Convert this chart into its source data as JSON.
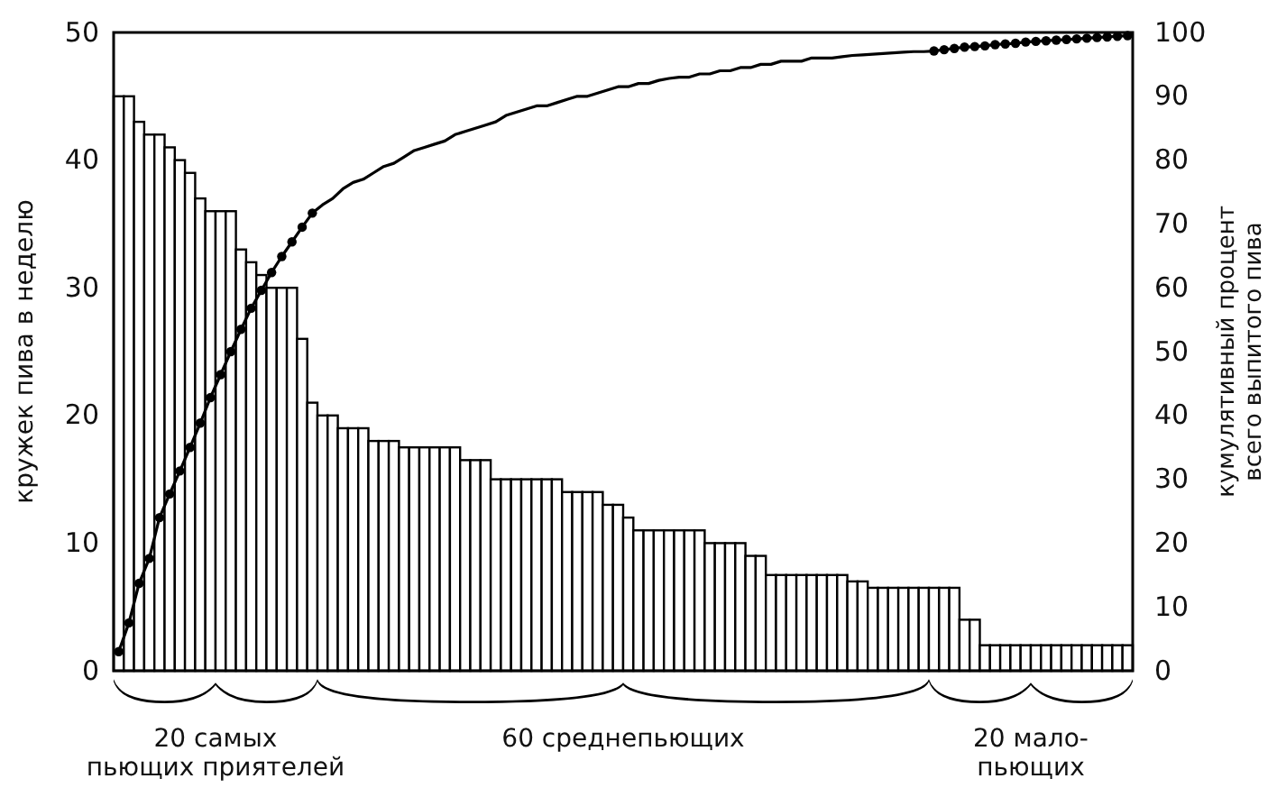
{
  "chart_data": {
    "type": "bar",
    "ylabel": "кружек пива в неделю",
    "y2label": "кумулятивный процент\nвсего выпитого пива",
    "categories": [
      null,
      null,
      null,
      null,
      null,
      null,
      null,
      null,
      null,
      null,
      null,
      null,
      null,
      null,
      null,
      null,
      null,
      null,
      null,
      null,
      null,
      null,
      null,
      null,
      null,
      null,
      null,
      null,
      null,
      null,
      null,
      null,
      null,
      null,
      null,
      null,
      null,
      null,
      null,
      null,
      null,
      null,
      null,
      null,
      null,
      null,
      null,
      null,
      null,
      null,
      null,
      null,
      null,
      null,
      null,
      null,
      null,
      null,
      null,
      null,
      null,
      null,
      null,
      null,
      null,
      null,
      null,
      null,
      null,
      null,
      null,
      null,
      null,
      null,
      null,
      null,
      null,
      null,
      null,
      null,
      null,
      null,
      null,
      null,
      null,
      null,
      null,
      null,
      null,
      null,
      null,
      null,
      null,
      null,
      null,
      null,
      null,
      null,
      null,
      null
    ],
    "series": [
      {
        "color": "#000000",
        "values": [
          45,
          45,
          43,
          42,
          42,
          41,
          40,
          39,
          37,
          36,
          36,
          36,
          33,
          32,
          31,
          30,
          30,
          30,
          26,
          21,
          20,
          20,
          19,
          19,
          19,
          18,
          18,
          18,
          17.5,
          17.5,
          17.5,
          17.5,
          17.5,
          17.5,
          16.5,
          16.5,
          16.5,
          15,
          15,
          15,
          15,
          15,
          15,
          15,
          14,
          14,
          14,
          14,
          13,
          13,
          12,
          11,
          11,
          11,
          11,
          11,
          11,
          11,
          10,
          10,
          10,
          10,
          9,
          9,
          7.5,
          7.5,
          7.5,
          7.5,
          7.5,
          7.5,
          7.5,
          7.5,
          7,
          7,
          6.5,
          6.5,
          6.5,
          6.5,
          6.5,
          6.5,
          6.5,
          6.5,
          6.5,
          4,
          4,
          2,
          2,
          2,
          2,
          2,
          2,
          2,
          2,
          2,
          2,
          2,
          2,
          2,
          2,
          2
        ]
      },
      {
        "type": "line",
        "axis": "y2",
        "color": "#000000",
        "marker": "none",
        "values": [
          3,
          7.5,
          13.7,
          17.6,
          24,
          27.7,
          31.3,
          35,
          38.8,
          42.8,
          46.4,
          50,
          53.5,
          56.8,
          59.6,
          62.4,
          64.9,
          67.2,
          69.5,
          71.7,
          73,
          74,
          75.5,
          76.5,
          77,
          78,
          79,
          79.5,
          80.5,
          81.5,
          82,
          82.5,
          83,
          84,
          84.5,
          85,
          85.5,
          86,
          87,
          87.5,
          88,
          88.5,
          88.5,
          89,
          89.5,
          90,
          90,
          90.5,
          91,
          91.5,
          91.5,
          92,
          92,
          92.5,
          92.8,
          93,
          93,
          93.5,
          93.5,
          94,
          94,
          94.5,
          94.5,
          95,
          95,
          95.5,
          95.5,
          95.5,
          96,
          96,
          96,
          96.2,
          96.4,
          96.5,
          96.6,
          96.7,
          96.8,
          96.9,
          97,
          97,
          97.1,
          97.3,
          97.5,
          97.7,
          97.8,
          97.9,
          98.1,
          98.2,
          98.3,
          98.5,
          98.6,
          98.7,
          98.8,
          98.9,
          99,
          99.1,
          99.2,
          99.3,
          99.4,
          99.5
        ]
      },
      {
        "type": "scatter",
        "axis": "y2",
        "color": "#000000",
        "marker": "circle",
        "values": [
          3,
          7.5,
          13.7,
          17.6,
          24,
          27.7,
          31.3,
          35,
          38.8,
          42.8,
          46.4,
          50,
          53.5,
          56.8,
          59.6,
          62.4,
          64.9,
          67.2,
          69.5,
          71.7,
          null,
          null,
          null,
          null,
          null,
          null,
          null,
          null,
          null,
          null,
          null,
          null,
          null,
          null,
          null,
          null,
          null,
          null,
          null,
          null,
          null,
          null,
          null,
          null,
          null,
          null,
          null,
          null,
          null,
          null,
          null,
          null,
          null,
          null,
          null,
          null,
          null,
          null,
          null,
          null,
          null,
          null,
          null,
          null,
          null,
          null,
          null,
          null,
          null,
          null,
          null,
          null,
          null,
          null,
          null,
          null,
          null,
          null,
          null,
          null,
          97.1,
          97.3,
          97.5,
          97.7,
          97.8,
          97.9,
          98.1,
          98.2,
          98.3,
          98.5,
          98.6,
          98.7,
          98.8,
          98.9,
          99,
          99.1,
          99.2,
          99.3,
          99.4,
          99.5
        ]
      }
    ],
    "ylim": [
      0,
      50
    ],
    "yticks": [
      0,
      10,
      20,
      30,
      40,
      50
    ],
    "y2lim": [
      0,
      100
    ],
    "y2ticks": [
      0,
      10,
      20,
      30,
      40,
      50,
      60,
      70,
      80,
      90,
      100
    ],
    "annotations": [
      "20 самых\nпьющих приятелей",
      "60 среднепьющих",
      "20 мало-\nпьющих"
    ],
    "grid": false
  }
}
